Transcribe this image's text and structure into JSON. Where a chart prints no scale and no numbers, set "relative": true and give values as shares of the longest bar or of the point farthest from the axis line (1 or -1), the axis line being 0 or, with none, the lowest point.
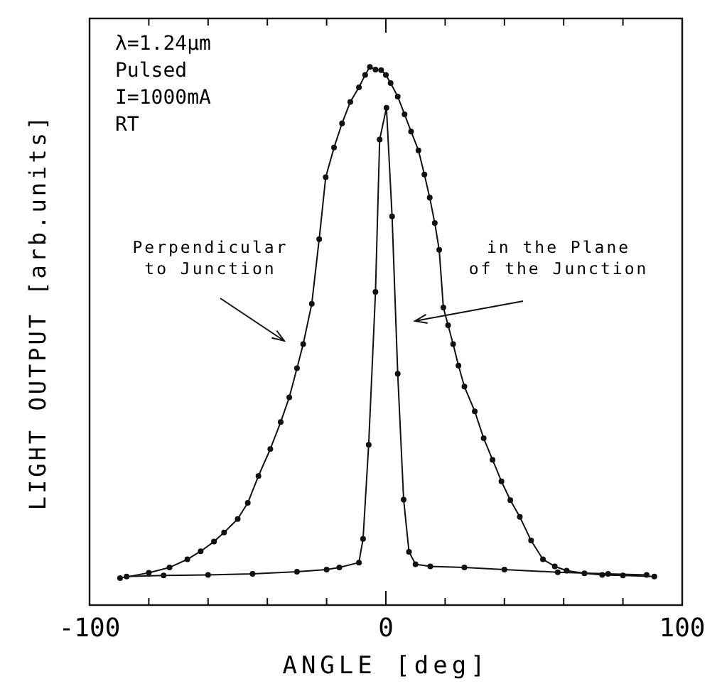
{
  "chart_data": {
    "type": "line",
    "xlabel": "ANGLE [deg]",
    "ylabel": "LIGHT OUTPUT [arb.units]",
    "relative": true,
    "marker": "circle",
    "line_style": "solid",
    "xlim": [
      -100,
      100
    ],
    "xticks": [
      -100,
      {
        "value": -80,
        "label": null
      },
      {
        "value": -60,
        "label": null
      },
      {
        "value": -40,
        "label": null
      },
      {
        "value": -20,
        "label": null
      },
      0,
      {
        "value": 20,
        "label": null
      },
      {
        "value": 40,
        "label": null
      },
      {
        "value": 60,
        "label": null
      },
      {
        "value": 80,
        "label": null
      },
      100
    ],
    "series": [
      {
        "color": "#111111",
        "x": [
          -89.7,
          -80,
          -73,
          -67,
          -62.5,
          -58,
          -54.6,
          -50,
          -46.6,
          -43,
          -39,
          -35.5,
          -32.6,
          -30,
          -27.9,
          -25,
          -22.5,
          -20.3,
          -17.5,
          -14.8,
          -12,
          -9.1,
          -7,
          -5.4,
          -3.5,
          -1.6,
          0,
          1.6,
          4,
          6.3,
          8.5,
          11,
          13,
          14.8,
          16.5,
          18,
          19.4,
          21,
          22.7,
          24.5,
          26.5,
          30,
          33,
          36,
          39,
          42,
          45.2,
          49,
          53,
          57,
          61,
          67,
          73,
          80,
          90.6
        ],
        "values": [
          0.05,
          0.06,
          0.07,
          0.085,
          0.1,
          0.118,
          0.135,
          0.16,
          0.19,
          0.24,
          0.29,
          0.34,
          0.386,
          0.44,
          0.485,
          0.56,
          0.68,
          0.795,
          0.85,
          0.895,
          0.935,
          0.962,
          0.985,
          1.0,
          0.995,
          0.994,
          0.985,
          0.97,
          0.945,
          0.912,
          0.88,
          0.845,
          0.8,
          0.757,
          0.71,
          0.66,
          0.553,
          0.52,
          0.485,
          0.445,
          0.406,
          0.36,
          0.31,
          0.27,
          0.23,
          0.195,
          0.164,
          0.12,
          0.085,
          0.072,
          0.064,
          0.059,
          0.056,
          0.055,
          0.053
        ]
      },
      {
        "color": "#111111",
        "x": [
          -87.5,
          -75,
          -60,
          -45,
          -30,
          -20,
          -15.7,
          -9.1,
          -7.7,
          -5.8,
          -3.5,
          -2.1,
          0.2,
          2.1,
          4,
          6,
          7.8,
          10,
          15,
          26.5,
          40,
          58,
          75,
          88
        ],
        "values": [
          0.053,
          0.055,
          0.056,
          0.058,
          0.062,
          0.066,
          0.07,
          0.079,
          0.123,
          0.298,
          0.582,
          0.865,
          0.924,
          0.722,
          0.43,
          0.196,
          0.099,
          0.076,
          0.072,
          0.07,
          0.066,
          0.061,
          0.058,
          0.056
        ]
      }
    ],
    "annotations": [
      "λ=1.24μm",
      "Pulsed",
      "I=1000mA",
      "RT",
      "Perpendicular\nto Junction",
      "in the Plane\nof the Junction"
    ]
  }
}
